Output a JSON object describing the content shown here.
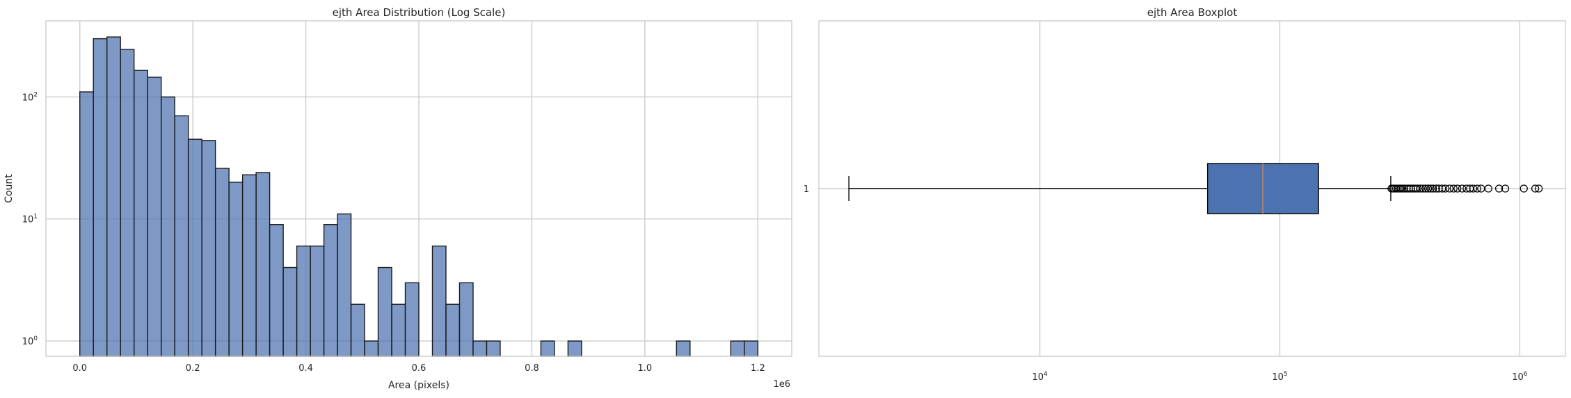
{
  "chart_data": [
    {
      "type": "bar",
      "title": "ejth Area Distribution (Log Scale)",
      "xlabel": "Area (pixels)",
      "ylabel": "Count",
      "x_offset_label": "1e6",
      "yscale": "log",
      "grid": true,
      "xlim": [
        -0.06,
        1.26
      ],
      "ylim": [
        0.75,
        420
      ],
      "x_ticks": [
        {
          "value": 0.0,
          "label": "0.0"
        },
        {
          "value": 0.2,
          "label": "0.2"
        },
        {
          "value": 0.4,
          "label": "0.4"
        },
        {
          "value": 0.6,
          "label": "0.6"
        },
        {
          "value": 0.8,
          "label": "0.8"
        },
        {
          "value": 1.0,
          "label": "1.0"
        },
        {
          "value": 1.2,
          "label": "1.2"
        }
      ],
      "y_ticks": [
        {
          "value": 1,
          "base": "10",
          "exp": "0"
        },
        {
          "value": 10,
          "base": "10",
          "exp": "1"
        },
        {
          "value": 100,
          "base": "10",
          "exp": "2"
        }
      ],
      "bin_start": 0.0,
      "bin_width": 0.024,
      "counts": [
        110,
        300,
        310,
        245,
        165,
        145,
        100,
        70,
        45,
        44,
        26,
        20,
        23,
        24,
        9,
        4,
        6,
        6,
        9,
        11,
        2,
        1,
        4,
        2,
        3,
        0,
        6,
        2,
        3,
        1,
        1,
        0,
        0,
        0,
        1,
        0,
        1,
        0,
        0,
        0,
        0,
        0,
        0,
        0,
        1,
        0,
        0,
        0,
        1,
        1
      ],
      "bar_color": "#4c72b0"
    },
    {
      "type": "boxplot",
      "title": "ejth Area Boxplot",
      "xscale": "log",
      "grid": true,
      "xlim": [
        1200,
        1550000
      ],
      "y_ticks": [
        {
          "value": 1,
          "label": "1"
        }
      ],
      "x_ticks": [
        {
          "value": 10000,
          "base": "10",
          "exp": "4"
        },
        {
          "value": 100000,
          "base": "10",
          "exp": "5"
        },
        {
          "value": 1000000,
          "base": "10",
          "exp": "6"
        }
      ],
      "box": {
        "whisker_low": 1600,
        "q1": 50000,
        "median": 85000,
        "q3": 145000,
        "whisker_high": 290000
      },
      "outliers": [
        292000,
        296000,
        300000,
        305000,
        310000,
        315000,
        320000,
        325000,
        330000,
        338000,
        345000,
        352000,
        360000,
        368000,
        375000,
        385000,
        395000,
        405000,
        415000,
        425000,
        435000,
        448000,
        460000,
        475000,
        490000,
        510000,
        530000,
        550000,
        575000,
        600000,
        620000,
        640000,
        665000,
        690000,
        740000,
        820000,
        870000,
        1040000,
        1160000,
        1200000
      ],
      "box_color": "#4c72b0",
      "median_color": "#dd8452"
    }
  ]
}
